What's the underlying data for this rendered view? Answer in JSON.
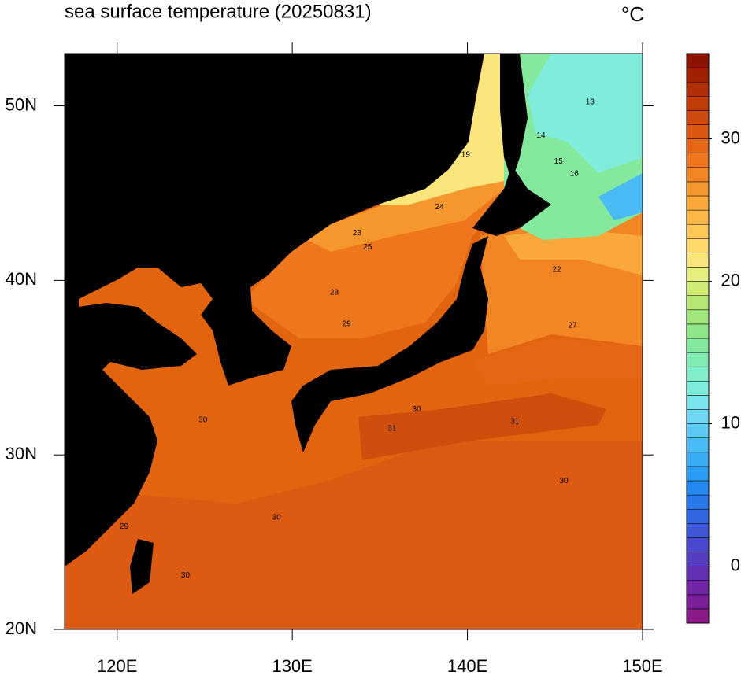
{
  "map": {
    "title": "sea surface temperature (20250831)",
    "unit": "°C",
    "xlim": [
      117,
      150
    ],
    "ylim": [
      20,
      53
    ],
    "xticks": [
      {
        "value": 120,
        "label": "120E"
      },
      {
        "value": 130,
        "label": "130E"
      },
      {
        "value": 140,
        "label": "140E"
      },
      {
        "value": 150,
        "label": "150E"
      }
    ],
    "yticks": [
      {
        "value": 20,
        "label": "20N"
      },
      {
        "value": 30,
        "label": "30N"
      },
      {
        "value": 40,
        "label": "40N"
      },
      {
        "value": 50,
        "label": "50N"
      }
    ],
    "colorbar": {
      "lim": [
        -4,
        36
      ],
      "ticks": [
        0,
        10,
        20,
        30
      ],
      "colors": [
        "#8b1a8b",
        "#7d1f99",
        "#7026a6",
        "#6330b4",
        "#563cc0",
        "#4a48cc",
        "#3e56d8",
        "#3266e2",
        "#2878ec",
        "#228af2",
        "#2a9cf4",
        "#3aacf5",
        "#4bbbf5",
        "#5ccaf4",
        "#6cd8f2",
        "#79e4ec",
        "#80ecdc",
        "#80eec8",
        "#80ecb2",
        "#84e99c",
        "#8ee688",
        "#a0e67a",
        "#b8e874",
        "#d0ec76",
        "#e6ee7c",
        "#fae67c",
        "#ffd86a",
        "#ffc858",
        "#fdb848",
        "#f9a83a",
        "#f6972e",
        "#f38624",
        "#ee761c",
        "#e66616",
        "#dc5812",
        "#cf4a0e",
        "#c23c0a",
        "#b22e07",
        "#a02004",
        "#8c1202"
      ]
    },
    "contour_labels": [
      {
        "value": 30,
        "lon": 124.9,
        "lat": 32.0
      },
      {
        "value": 31,
        "lon": 135.7,
        "lat": 31.5
      },
      {
        "value": 31,
        "lon": 142.7,
        "lat": 31.9
      },
      {
        "value": 30,
        "lon": 137.1,
        "lat": 32.6
      },
      {
        "value": 29,
        "lon": 133.1,
        "lat": 37.5
      },
      {
        "value": 28,
        "lon": 132.4,
        "lat": 39.3
      },
      {
        "value": 27,
        "lon": 146.0,
        "lat": 37.4
      },
      {
        "value": 25,
        "lon": 134.3,
        "lat": 41.9
      },
      {
        "value": 24,
        "lon": 138.4,
        "lat": 44.2
      },
      {
        "value": 23,
        "lon": 133.7,
        "lat": 42.7
      },
      {
        "value": 19,
        "lon": 139.9,
        "lat": 47.2
      },
      {
        "value": 16,
        "lon": 146.1,
        "lat": 46.1
      },
      {
        "value": 15,
        "lon": 145.2,
        "lat": 46.8
      },
      {
        "value": 14,
        "lon": 144.2,
        "lat": 48.3
      },
      {
        "value": 13,
        "lon": 147.0,
        "lat": 50.2
      },
      {
        "value": 30,
        "lon": 129.1,
        "lat": 26.4
      },
      {
        "value": 30,
        "lon": 123.9,
        "lat": 23.1
      },
      {
        "value": 29,
        "lon": 120.4,
        "lat": 25.9
      },
      {
        "value": 30,
        "lon": 145.5,
        "lat": 28.5
      },
      {
        "value": 22,
        "lon": 145.1,
        "lat": 40.6
      }
    ]
  }
}
